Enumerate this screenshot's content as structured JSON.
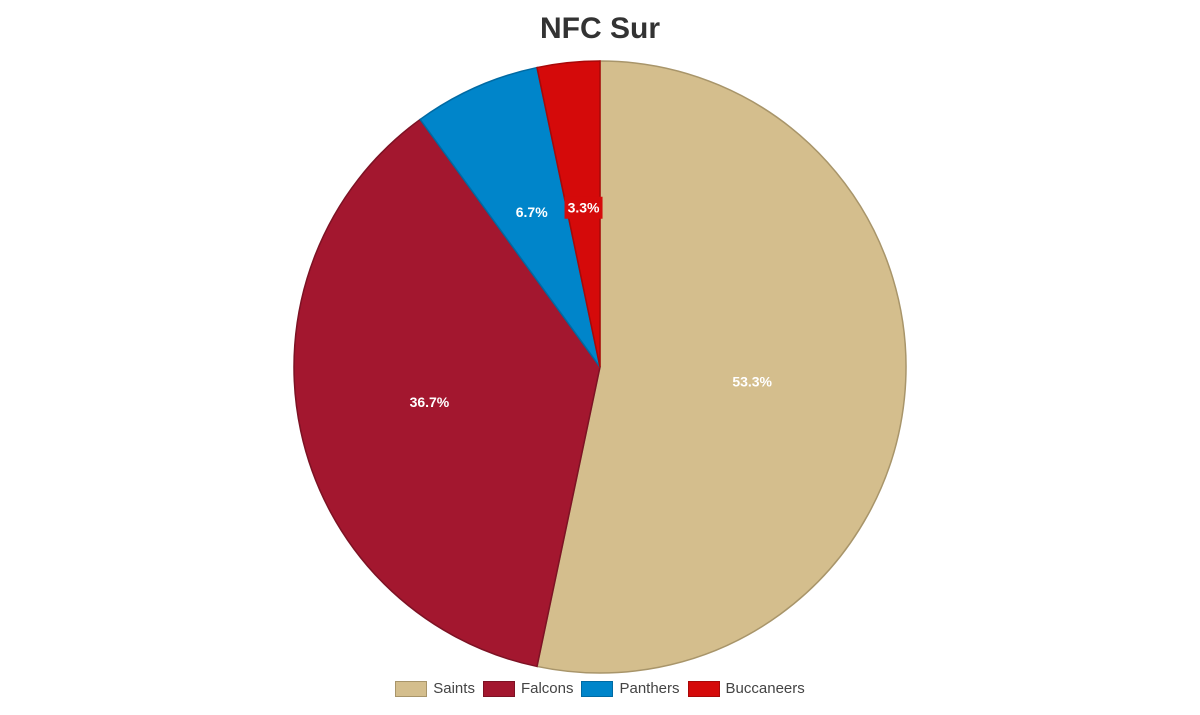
{
  "chart_data": {
    "type": "pie",
    "title": "NFC Sur",
    "categories": [
      "Saints",
      "Falcons",
      "Panthers",
      "Buccaneers"
    ],
    "values": [
      53.3,
      36.7,
      6.7,
      3.3
    ],
    "labels": [
      "53.3%",
      "36.7%",
      "6.7%",
      "3.3%"
    ],
    "colors": [
      "#d4be8d",
      "#a3172f",
      "#0085ca",
      "#d50a0a"
    ],
    "border_colors": [
      "#a8956a",
      "#7d1224",
      "#006aa3",
      "#a80808"
    ],
    "legend_position": "bottom"
  }
}
